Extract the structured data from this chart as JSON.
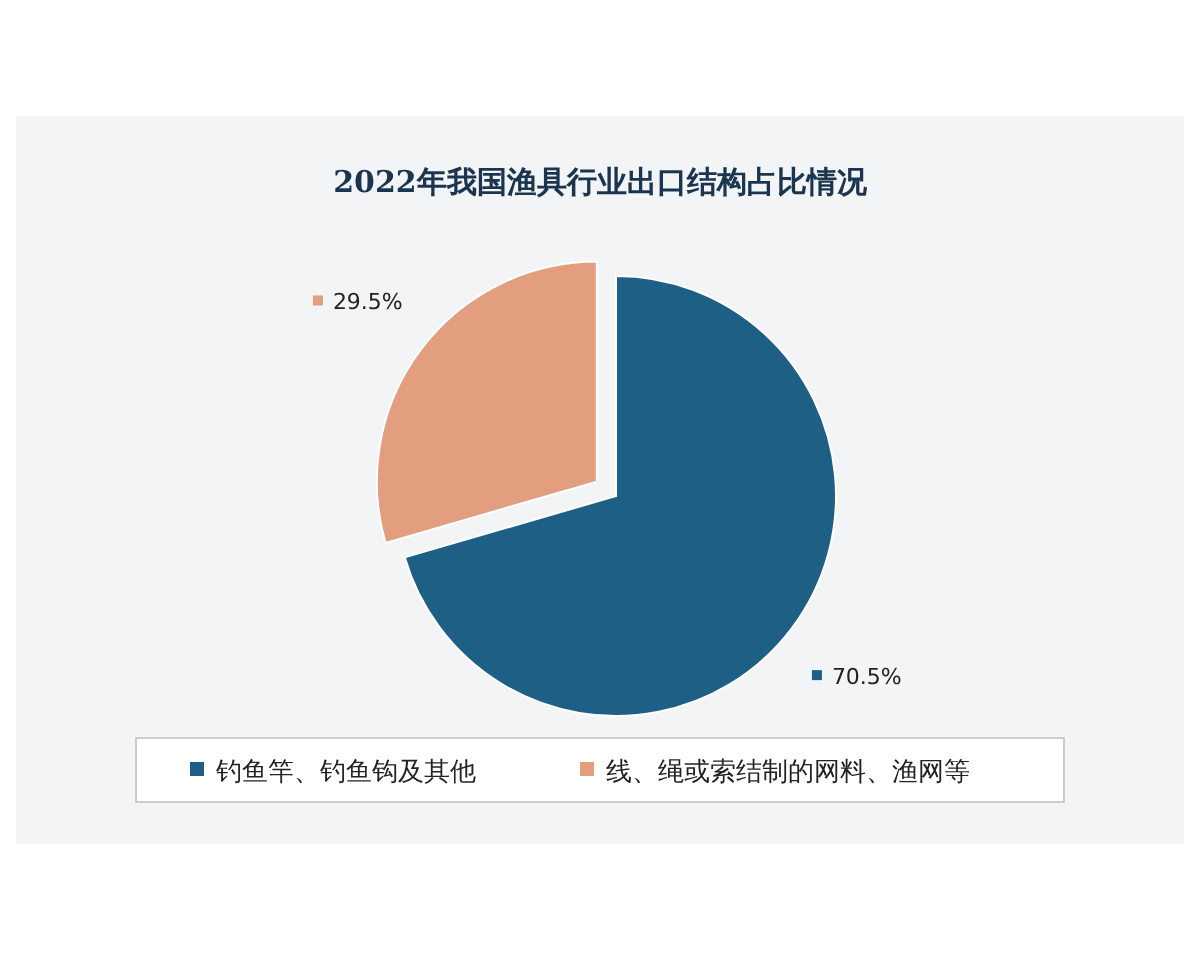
{
  "chart_data": {
    "type": "pie",
    "title": "2022年我国渔具行业出口结构占比情况",
    "categories": [
      "钓鱼竿、钓鱼钩及其他",
      "线、绳或索结制的网料、渔网等"
    ],
    "values": [
      70.5,
      29.5
    ],
    "colors": [
      "#1d5f85",
      "#e39e7f"
    ],
    "value_labels": [
      "70.5%",
      "29.5%"
    ],
    "legend": "bottom"
  }
}
